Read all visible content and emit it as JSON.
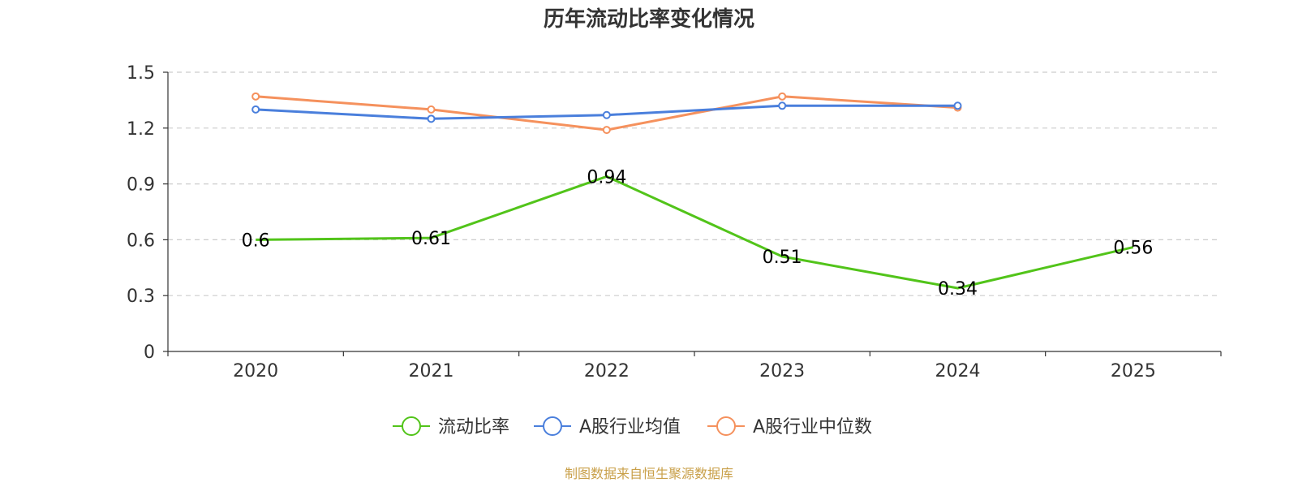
{
  "chart_data": {
    "type": "line",
    "title": "历年流动比率变化情况",
    "categories": [
      "2020",
      "2021",
      "2022",
      "2023",
      "2024",
      "2025"
    ],
    "y_ticks": [
      "0",
      "0.3",
      "0.6",
      "0.9",
      "1.2",
      "1.5"
    ],
    "ylim": [
      0,
      1.5
    ],
    "grid": true,
    "legend_position": "bottom",
    "series": [
      {
        "name": "流动比率",
        "color": "#52c41a",
        "values": [
          0.6,
          0.61,
          0.94,
          0.51,
          0.34,
          0.56
        ],
        "labels": [
          "0.6",
          "0.61",
          "0.94",
          "0.51",
          "0.34",
          "0.56"
        ],
        "show_labels": true,
        "show_markers": false
      },
      {
        "name": "A股行业均值",
        "color": "#4a7fdc",
        "values": [
          1.3,
          1.25,
          1.27,
          1.32,
          1.32,
          null
        ],
        "show_labels": false,
        "show_markers": true
      },
      {
        "name": "A股行业中位数",
        "color": "#f5915d",
        "values": [
          1.37,
          1.3,
          1.19,
          1.37,
          1.31,
          null
        ],
        "show_labels": false,
        "show_markers": true
      }
    ]
  },
  "footer": {
    "source": "制图数据来自恒生聚源数据库"
  }
}
